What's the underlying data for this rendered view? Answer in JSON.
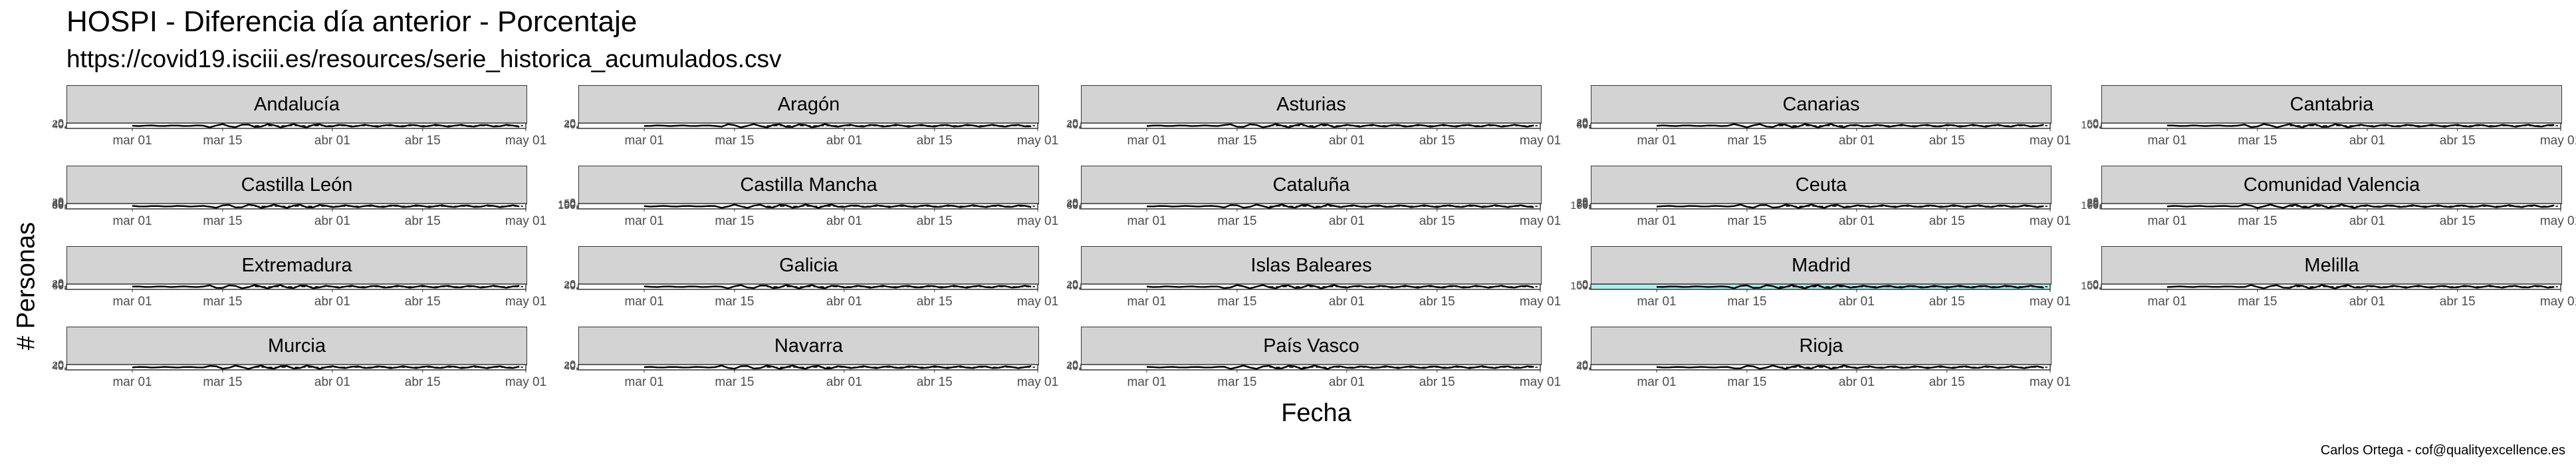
{
  "title": "HOSPI - Diferencia día anterior - Porcentaje",
  "subtitle": "https://covid19.isciii.es/resources/serie_historica_acumulados.csv",
  "caption": "Carlos Ortega - cof@qualityexcellence.es",
  "chart_data": {
    "type": "line",
    "xlabel": "Fecha",
    "ylabel": "# Personas",
    "x_ticks": [
      "mar 01",
      "mar 15",
      "abr 01",
      "abr 15",
      "may 01"
    ],
    "x_range": [
      "2020-02-20",
      "2020-05-01"
    ],
    "series_start": "2020-03-01",
    "grid": false,
    "colors": {
      "strip": "#d3d3d3",
      "line": "#000000",
      "highlight": "#aeeeee"
    },
    "panels": [
      {
        "name": "Andalucía",
        "yticks": [
          "40",
          "20",
          "0"
        ]
      },
      {
        "name": "Aragón",
        "yticks": [
          "40",
          "20",
          "0"
        ]
      },
      {
        "name": "Asturias",
        "yticks": [
          "40",
          "20",
          "0"
        ]
      },
      {
        "name": "Canarias",
        "yticks": [
          "60",
          "40",
          "20",
          "0"
        ]
      },
      {
        "name": "Cantabria",
        "yticks": [
          "100",
          "50",
          "0"
        ]
      },
      {
        "name": "Castilla León",
        "yticks": [
          "80",
          "60",
          "40",
          "20",
          "0"
        ]
      },
      {
        "name": "Castilla Mancha",
        "yticks": [
          "150",
          "100",
          "50",
          "0"
        ]
      },
      {
        "name": "Cataluña",
        "yticks": [
          "60",
          "40",
          "20",
          "0"
        ]
      },
      {
        "name": "Ceuta",
        "yticks": [
          "100",
          "75",
          "50",
          "25",
          "0"
        ]
      },
      {
        "name": "Comunidad Valencia",
        "yticks": [
          "100",
          "75",
          "50",
          "25",
          "0"
        ]
      },
      {
        "name": "Extremadura",
        "yticks": [
          "60",
          "40",
          "20",
          "0"
        ]
      },
      {
        "name": "Galicia",
        "yticks": [
          "40",
          "20",
          "0"
        ]
      },
      {
        "name": "Islas Baleares",
        "yticks": [
          "40",
          "20",
          "0"
        ]
      },
      {
        "name": "Madrid",
        "yticks": [
          "100",
          "50",
          "0"
        ],
        "highlight": true
      },
      {
        "name": "Melilla",
        "yticks": [
          "100",
          "50",
          "0"
        ]
      },
      {
        "name": "Murcia",
        "yticks": [
          "40",
          "20",
          "0"
        ]
      },
      {
        "name": "Navarra",
        "yticks": [
          "40",
          "20",
          "0"
        ]
      },
      {
        "name": "País Vasco",
        "yticks": [
          "40",
          "20",
          "0"
        ]
      },
      {
        "name": "Rioja",
        "yticks": [
          "40",
          "20",
          "0"
        ]
      }
    ]
  }
}
